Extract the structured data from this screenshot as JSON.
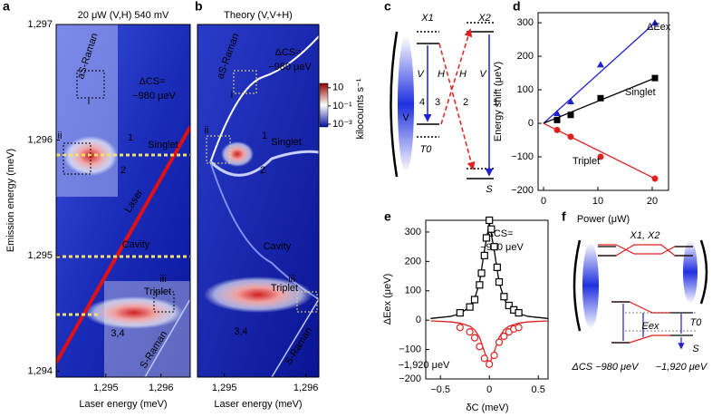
{
  "chart_data": [
    {
      "type": "heatmap",
      "label": "a",
      "title": "20 μW (V,H) 540 mV",
      "xlabel": "Laser energy (meV)",
      "ylabel": "Emission energy (meV)",
      "xlim": [
        1294.1,
        1296.53
      ],
      "ylim": [
        1293.95,
        1297
      ],
      "xticks": [
        {
          "value": 1295,
          "label": "1,295"
        },
        {
          "value": 1296,
          "label": "1,296"
        }
      ],
      "yticks": [
        {
          "value": 1294,
          "label": "1,294"
        },
        {
          "value": 1295,
          "label": "1,295"
        },
        {
          "value": 1296,
          "label": "1,296"
        },
        {
          "value": 1297,
          "label": "1,297"
        }
      ],
      "annotations": [
        "ΔCS=",
        "−980 μeV",
        "aS-Raman",
        "i",
        "ii",
        "iii",
        "1",
        "2",
        "Singlet",
        "Laser",
        "Cavity",
        "Triplet",
        "3,4",
        "S-Raman"
      ]
    },
    {
      "type": "heatmap",
      "label": "b",
      "title": "Theory (V,V+H)",
      "xlabel": "Laser energy (meV)",
      "xlim": [
        1294.67,
        1296.16
      ],
      "ylim": [
        1293.95,
        1297
      ],
      "xticks": [
        {
          "value": 1295,
          "label": "1,295"
        },
        {
          "value": 1296,
          "label": "1,296"
        }
      ],
      "colorbar": {
        "label": "kilocounts s⁻¹",
        "lim": [
          0.0005,
          30
        ],
        "log": true,
        "ticks": [
          10,
          {
            "value": 0.1,
            "label": "10⁻¹"
          },
          {
            "value": 0.001,
            "label": "10⁻³"
          }
        ]
      },
      "annotations": [
        "ΔCS=",
        "−980 μeV",
        "aS-Raman",
        "i",
        "ii",
        "iii",
        "1",
        "2",
        "Singlet",
        "Cavity",
        "Triplet",
        "3,4",
        "S-Raman"
      ]
    },
    {
      "type": "line",
      "label": "d",
      "xlabel": "Power (μW)",
      "ylabel": "Energy shift (μeV)",
      "xlim": [
        -1,
        23
      ],
      "ylim": [
        -200,
        330
      ],
      "xticks": [
        0,
        10,
        20
      ],
      "yticks": [
        {
          "value": -200,
          "label": "−200"
        },
        {
          "value": -100,
          "label": "−100"
        },
        0,
        100,
        200,
        300
      ],
      "series": [
        {
          "name": "ΔEex",
          "color": "#2020d0",
          "marker": "triangle",
          "x": [
            2.5,
            5,
            10.5,
            20.5
          ],
          "values": [
            30,
            65,
            175,
            300
          ],
          "fit_x": [
            0,
            20.5
          ],
          "fit_values": [
            0,
            300
          ]
        },
        {
          "name": "Singlet",
          "color": "#000000",
          "marker": "square",
          "x": [
            2.5,
            5,
            10.5,
            20.5
          ],
          "values": [
            10,
            25,
            75,
            135
          ],
          "fit_x": [
            0,
            20.5
          ],
          "fit_values": [
            0,
            135
          ]
        },
        {
          "name": "Triplet",
          "color": "#e02020",
          "marker": "circle",
          "x": [
            2.5,
            5,
            10.5,
            20.5
          ],
          "values": [
            -20,
            -40,
            -100,
            -165
          ],
          "fit_x": [
            0,
            20.5
          ],
          "fit_values": [
            0,
            -165
          ]
        }
      ]
    },
    {
      "type": "scatter",
      "label": "e",
      "xlabel": "δC (meV)",
      "ylabel": "ΔEex (μeV)",
      "xlim": [
        -0.65,
        0.6
      ],
      "ylim": [
        -200,
        340
      ],
      "xticks": [
        {
          "value": -0.5,
          "label": "−0.5"
        },
        0,
        0.5
      ],
      "yticks": [
        {
          "value": -200,
          "label": "−200"
        },
        {
          "value": -100,
          "label": "−100"
        },
        0,
        100,
        200,
        300
      ],
      "series": [
        {
          "color": "#000000",
          "marker": "square",
          "x": [
            -0.3,
            -0.2,
            -0.15,
            -0.1,
            -0.08,
            -0.05,
            -0.03,
            0,
            0.02,
            0.05,
            0.08,
            0.1,
            0.15,
            0.2,
            0.25,
            0.3
          ],
          "values": [
            25,
            45,
            70,
            120,
            160,
            220,
            280,
            340,
            310,
            250,
            180,
            130,
            80,
            50,
            35,
            25
          ],
          "fit_x": [
            -0.6,
            -0.4,
            -0.3,
            -0.2,
            -0.15,
            -0.1,
            -0.05,
            0,
            0.05,
            0.1,
            0.15,
            0.2,
            0.3,
            0.4,
            0.6
          ],
          "fit_values": [
            5.8,
            12.7,
            21.9,
            45.5,
            73.1,
            128.8,
            237.3,
            330,
            237.3,
            128.8,
            73.1,
            45.5,
            21.9,
            12.7,
            5.8
          ]
        },
        {
          "color": "#e02020",
          "marker": "circle",
          "x": [
            -0.3,
            -0.2,
            -0.15,
            -0.1,
            -0.05,
            0,
            0.05,
            0.1,
            0.15,
            0.2,
            0.25,
            0.3
          ],
          "values": [
            -25,
            -40,
            -60,
            -90,
            -130,
            -150,
            -120,
            -75,
            -55,
            -40,
            -30,
            -25
          ],
          "fit_x": [
            -0.6,
            -0.4,
            -0.3,
            -0.2,
            -0.15,
            -0.1,
            -0.05,
            0,
            0.05,
            0.1,
            0.15,
            0.2,
            0.3,
            0.4,
            0.6
          ],
          "fit_values": [
            -2.6,
            -5.8,
            -10,
            -20.7,
            -33.2,
            -58.5,
            -107.9,
            -150,
            -107.9,
            -58.5,
            -33.2,
            -20.7,
            -10,
            -5.8,
            -2.6
          ]
        }
      ],
      "annotations": [
        "ΔCS=",
        "−980 μeV",
        "−1,920 μeV"
      ]
    }
  ],
  "diagrams": {
    "c": {
      "label": "c",
      "texts": [
        "X1",
        "X2",
        "T0",
        "S",
        "V",
        "H",
        "H",
        "V",
        "4",
        "3",
        "2",
        "1",
        "V"
      ]
    },
    "f": {
      "label": "f",
      "texts": [
        "X1, X2",
        "Eex",
        "T0",
        "S",
        "ΔCS −980 μeV",
        "−1,920 μeV"
      ]
    }
  }
}
